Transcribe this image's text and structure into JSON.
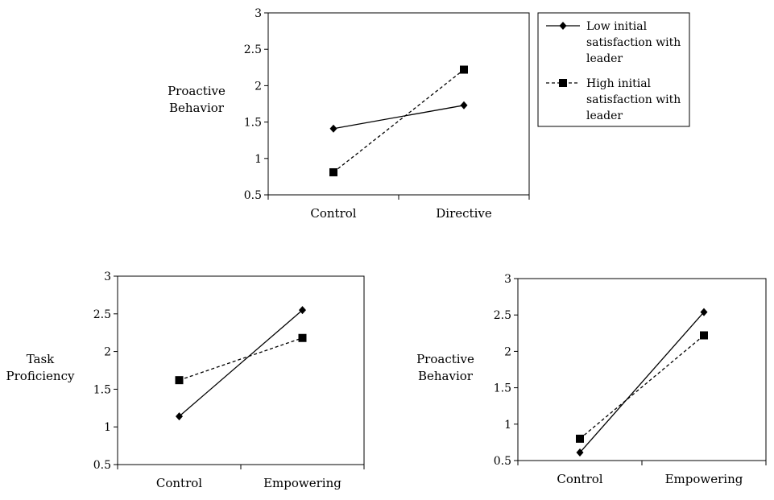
{
  "legend": {
    "entries": [
      {
        "lines": [
          "Low initial",
          "satisfaction with",
          "leader"
        ],
        "marker": "diamond",
        "dash": "solid"
      },
      {
        "lines": [
          "High initial",
          "satisfaction with",
          "leader"
        ],
        "marker": "square",
        "dash": "dashed"
      }
    ]
  },
  "chart_data": [
    {
      "type": "line",
      "title": "",
      "ylabel": [
        "Proactive",
        "Behavior"
      ],
      "categories": [
        "Control",
        "Directive"
      ],
      "yticks": [
        "0.5",
        "1",
        "1.5",
        "2",
        "2.5",
        "3"
      ],
      "ylim": [
        0.5,
        3
      ],
      "grid": false,
      "legend_position": "right",
      "series": [
        {
          "name": "Low initial satisfaction with leader",
          "marker": "diamond",
          "dash": "solid",
          "values": [
            1.41,
            1.73
          ]
        },
        {
          "name": "High initial satisfaction with leader",
          "marker": "square",
          "dash": "dashed",
          "values": [
            0.81,
            2.22
          ]
        }
      ]
    },
    {
      "type": "line",
      "title": "",
      "ylabel": [
        "Task",
        "Proficiency"
      ],
      "categories": [
        "Control",
        "Empowering"
      ],
      "yticks": [
        "0.5",
        "1",
        "1.5",
        "2",
        "2.5",
        "3"
      ],
      "ylim": [
        0.5,
        3
      ],
      "grid": false,
      "series": [
        {
          "name": "Low initial satisfaction with leader",
          "marker": "diamond",
          "dash": "solid",
          "values": [
            1.14,
            2.55
          ]
        },
        {
          "name": "High initial satisfaction with leader",
          "marker": "square",
          "dash": "dashed",
          "values": [
            1.62,
            2.18
          ]
        }
      ]
    },
    {
      "type": "line",
      "title": "",
      "ylabel": [
        "Proactive",
        "Behavior"
      ],
      "categories": [
        "Control",
        "Empowering"
      ],
      "yticks": [
        "0.5",
        "1",
        "1.5",
        "2",
        "2.5",
        "3"
      ],
      "ylim": [
        0.5,
        3
      ],
      "grid": false,
      "series": [
        {
          "name": "Low initial satisfaction with leader",
          "marker": "diamond",
          "dash": "solid",
          "values": [
            0.61,
            2.54
          ]
        },
        {
          "name": "High initial satisfaction with leader",
          "marker": "square",
          "dash": "dashed",
          "values": [
            0.8,
            2.22
          ]
        }
      ]
    }
  ]
}
